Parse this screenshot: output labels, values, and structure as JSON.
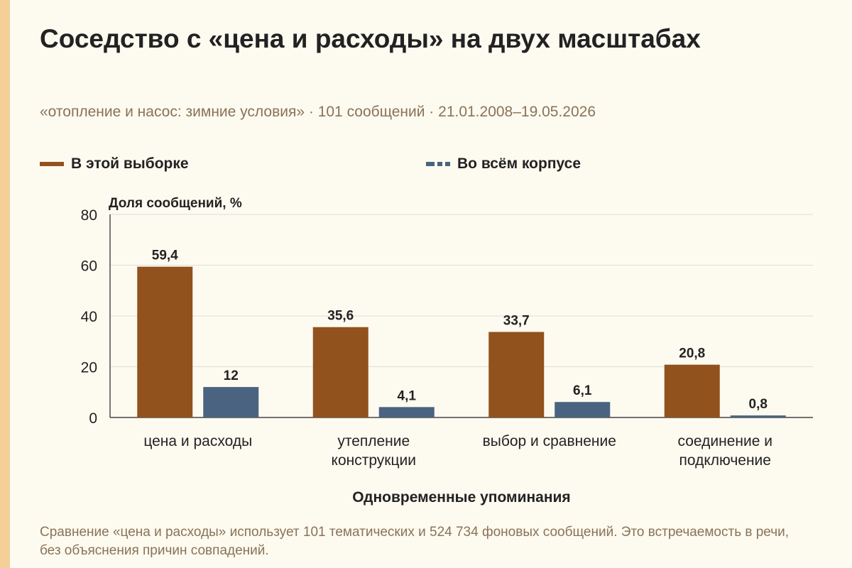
{
  "title": "Соседство с «цена и расходы» на двух масштабах",
  "subtitle": "«отопление и насос: зимние условия» · 101 сообщений · 21.01.2008–19.05.2026",
  "footnote": "Сравнение «цена и расходы» использует 101 тематических и 524 734 фоновых сообщений. Это встречаемость в речи, без объяснения причин совпадений.",
  "colors": {
    "series1": "#91521d",
    "series2": "#4a6380",
    "accent_stripe": "#f4cf98",
    "grid": "#dddddd",
    "axis": "#222222"
  },
  "chart_data": {
    "type": "bar",
    "ylabel": "Доля сообщений, %",
    "xlabel": "Одновременные упоминания",
    "ylim": [
      0,
      80
    ],
    "yticks": [
      "0",
      "20",
      "40",
      "60",
      "80"
    ],
    "grid": true,
    "legend_position": "top",
    "categories": [
      [
        "цена и расходы"
      ],
      [
        "утепление",
        "конструкции"
      ],
      [
        "выбор и сравнение"
      ],
      [
        "соединение и",
        "подключение"
      ]
    ],
    "series": [
      {
        "name": "В этой выборке",
        "values": [
          59.4,
          35.6,
          33.7,
          20.8
        ],
        "labels": [
          "59,4",
          "35,6",
          "33,7",
          "20,8"
        ]
      },
      {
        "name": "Во всём корпусе",
        "values": [
          12,
          4.1,
          6.1,
          0.8
        ],
        "labels": [
          "12",
          "4,1",
          "6,1",
          "0,8"
        ]
      }
    ]
  }
}
